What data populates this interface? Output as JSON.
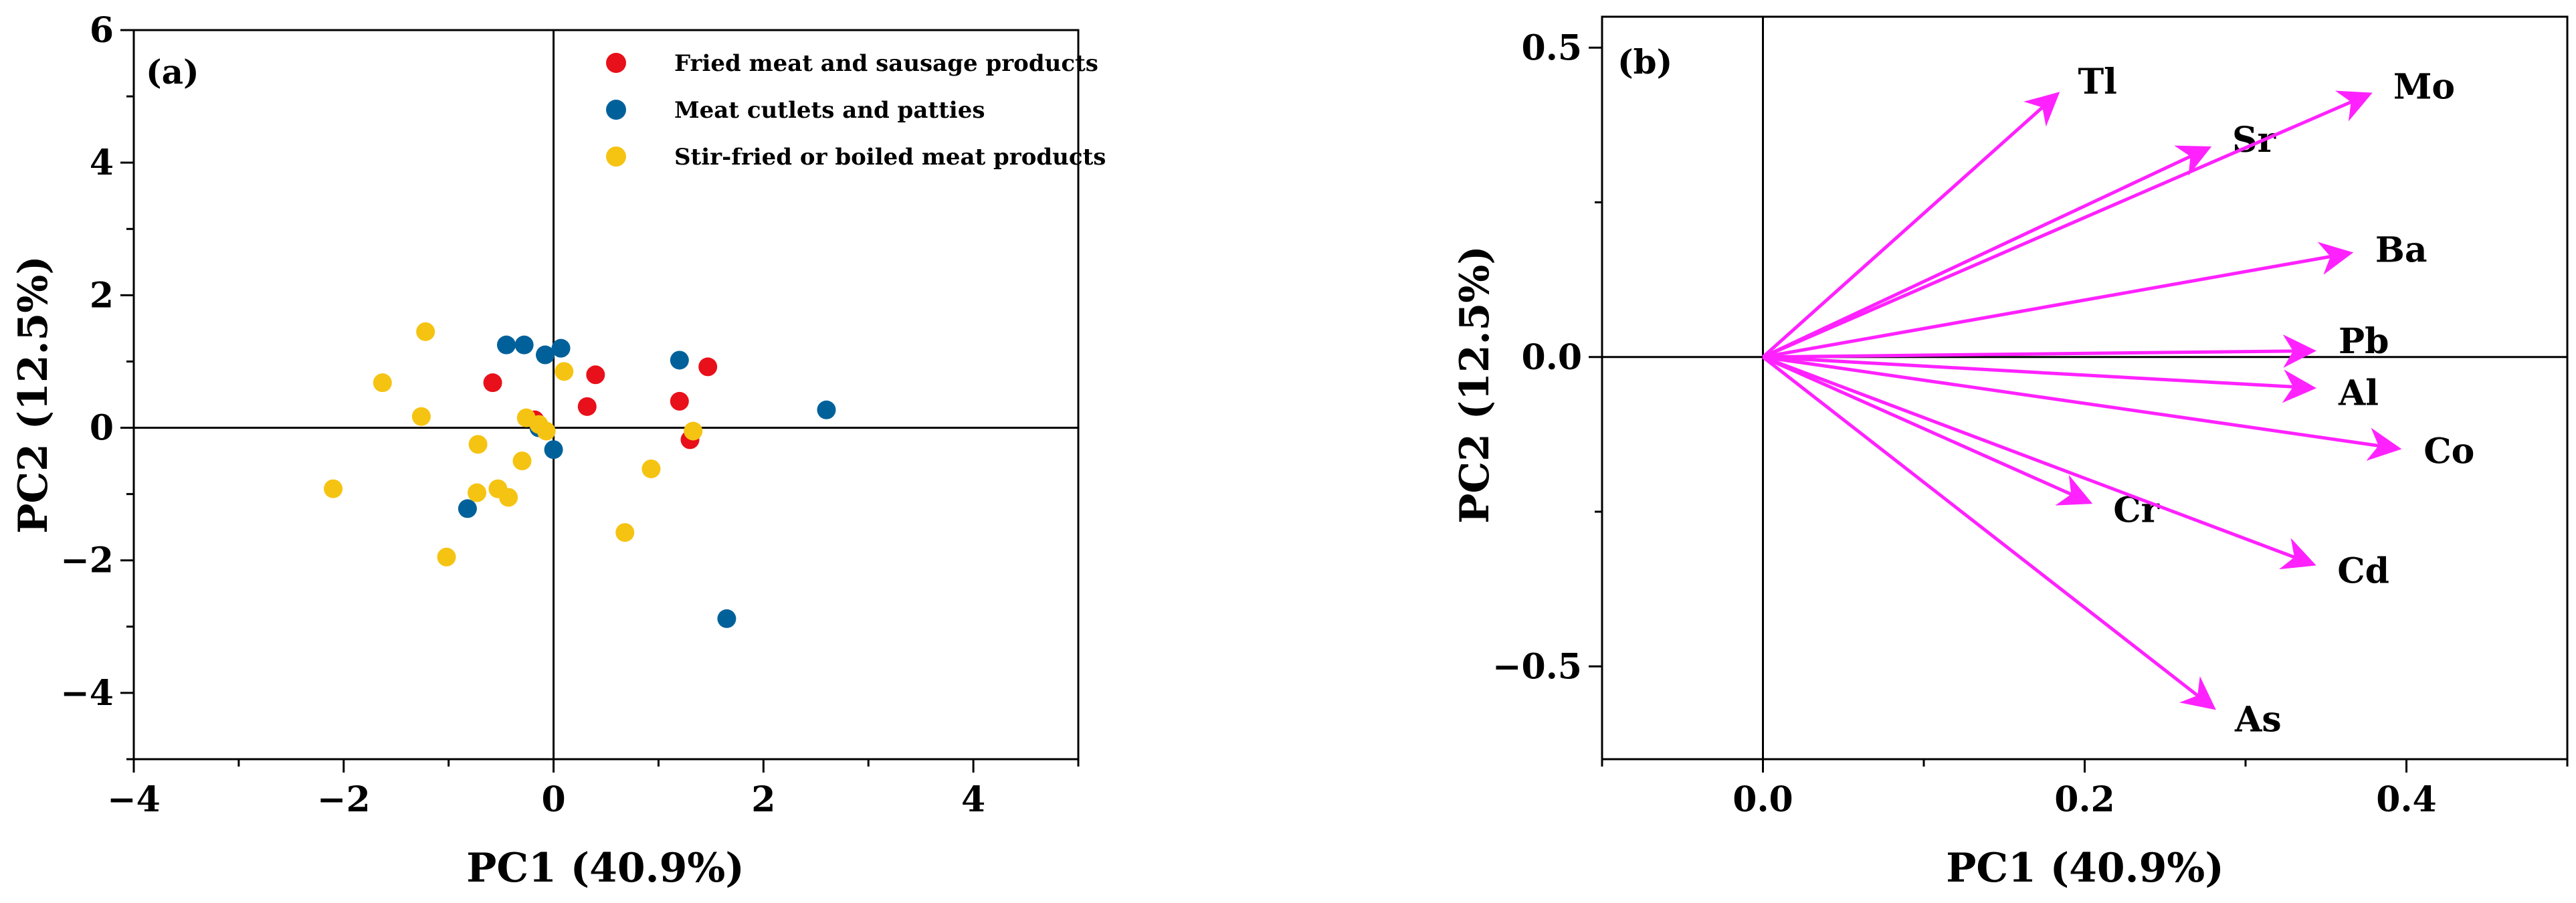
{
  "chart_data": [
    {
      "type": "scatter",
      "panel_label": "(a)",
      "xlabel": "PC1 (40.9%)",
      "ylabel": "PC2 (12.5%)",
      "xlim": [
        -4,
        5
      ],
      "ylim": [
        -5,
        6
      ],
      "xticks": [
        -4,
        -2,
        0,
        2,
        4
      ],
      "yticks": [
        -4,
        -2,
        0,
        2,
        4,
        6
      ],
      "xtick_labels": [
        "−4",
        "−2",
        "0",
        "2",
        "4"
      ],
      "ytick_labels": [
        "−4",
        "−2",
        "0",
        "2",
        "4",
        "6"
      ],
      "grid": false,
      "reference_lines": {
        "x": 0,
        "y": 0
      },
      "legend_position": "top-right",
      "series": [
        {
          "name": "Fried meat and sausage products",
          "color": "#e8101a",
          "points": [
            [
              1.47,
              0.92
            ],
            [
              0.4,
              0.8
            ],
            [
              -0.58,
              0.68
            ],
            [
              1.2,
              0.4
            ],
            [
              0.32,
              0.32
            ],
            [
              -0.18,
              0.12
            ],
            [
              1.3,
              -0.18
            ]
          ]
        },
        {
          "name": "Meat cutlets and patties",
          "color": "#00619a",
          "points": [
            [
              -0.45,
              1.25
            ],
            [
              -0.28,
              1.25
            ],
            [
              0.07,
              1.2
            ],
            [
              -0.08,
              1.1
            ],
            [
              1.2,
              1.02
            ],
            [
              2.6,
              0.27
            ],
            [
              -0.14,
              0.0
            ],
            [
              0.0,
              -0.33
            ],
            [
              -0.82,
              -1.22
            ],
            [
              1.65,
              -2.88
            ]
          ]
        },
        {
          "name": "Stir-fried or boiled meat products",
          "color": "#f5c311",
          "points": [
            [
              -1.22,
              1.45
            ],
            [
              -1.63,
              0.68
            ],
            [
              0.1,
              0.85
            ],
            [
              -1.26,
              0.17
            ],
            [
              -0.26,
              0.15
            ],
            [
              -0.14,
              0.05
            ],
            [
              -0.07,
              -0.05
            ],
            [
              1.33,
              -0.05
            ],
            [
              -0.72,
              -0.25
            ],
            [
              -0.3,
              -0.5
            ],
            [
              0.93,
              -0.62
            ],
            [
              -2.1,
              -0.92
            ],
            [
              -0.53,
              -0.92
            ],
            [
              -0.73,
              -0.98
            ],
            [
              -0.43,
              -1.05
            ],
            [
              0.68,
              -1.58
            ],
            [
              -1.02,
              -1.95
            ]
          ]
        }
      ]
    },
    {
      "type": "biplot-loadings",
      "panel_label": "(b)",
      "xlabel": "PC1 (40.9%)",
      "ylabel": "PC2 (12.5%)",
      "xlim": [
        -0.1,
        0.5
      ],
      "ylim": [
        -0.65,
        0.55
      ],
      "xticks": [
        0.0,
        0.2,
        0.4
      ],
      "yticks": [
        -0.5,
        0.0,
        0.5
      ],
      "xtick_labels": [
        "0.0",
        "0.2",
        "0.4"
      ],
      "ytick_labels": [
        "−0.5",
        "0.0",
        "0.5"
      ],
      "grid": false,
      "reference_lines": {
        "x": 0,
        "y": 0
      },
      "arrow_color": "#ff22ff",
      "loadings": [
        {
          "name": "Tl",
          "x": 0.183,
          "y": 0.425
        },
        {
          "name": "Sr",
          "x": 0.277,
          "y": 0.338
        },
        {
          "name": "Mo",
          "x": 0.377,
          "y": 0.425
        },
        {
          "name": "Ba",
          "x": 0.365,
          "y": 0.168
        },
        {
          "name": "Pb",
          "x": 0.342,
          "y": 0.01
        },
        {
          "name": "Al",
          "x": 0.342,
          "y": -0.05
        },
        {
          "name": "Co",
          "x": 0.395,
          "y": -0.148
        },
        {
          "name": "Cr",
          "x": 0.203,
          "y": -0.235
        },
        {
          "name": "Cd",
          "x": 0.342,
          "y": -0.335
        },
        {
          "name": "As",
          "x": 0.28,
          "y": -0.567
        }
      ]
    }
  ]
}
